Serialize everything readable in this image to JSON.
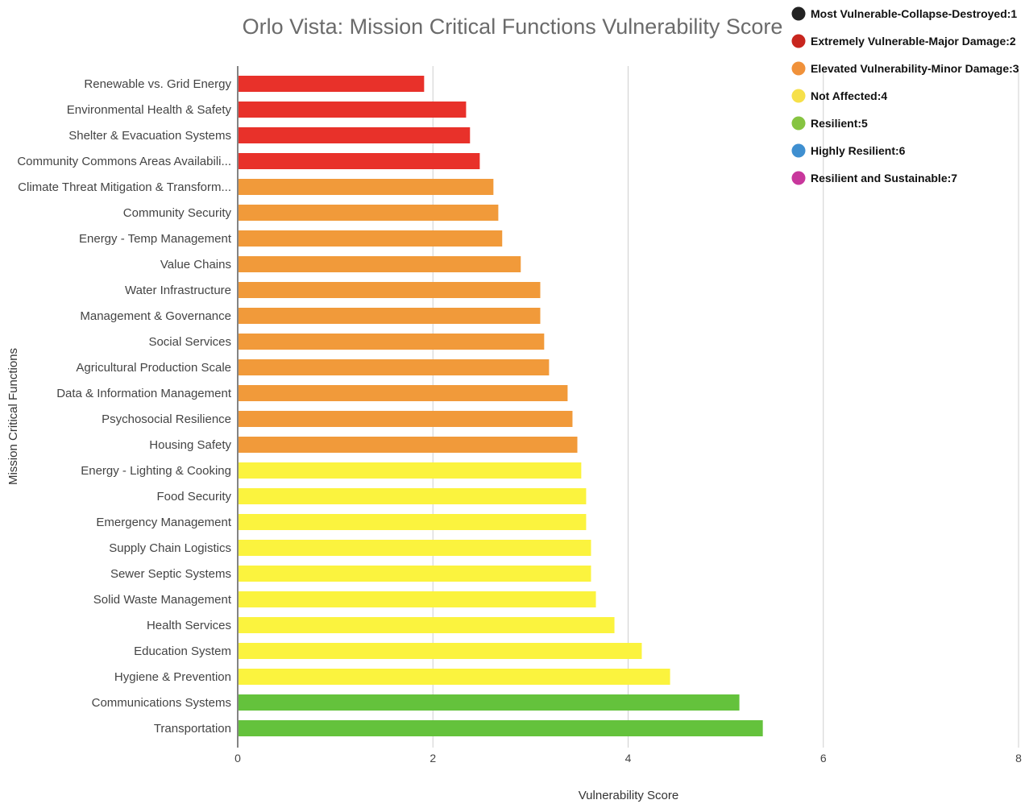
{
  "chart_data": {
    "type": "bar",
    "orientation": "horizontal",
    "title": "Orlo Vista: Mission Critical Functions Vulnerability Score",
    "xlabel": "Vulnerability Score",
    "ylabel": "Mission Critical Functions",
    "xlim": [
      0,
      8
    ],
    "xticks": [
      0,
      2,
      4,
      6,
      8
    ],
    "grid": true,
    "legend_position": "top-right",
    "categories": [
      "Renewable vs. Grid Energy",
      "Environmental Health & Safety",
      "Shelter & Evacuation Systems",
      "Community Commons Areas Availabili...",
      "Climate Threat Mitigation & Transform...",
      "Community Security",
      "Energy - Temp Management",
      "Value Chains",
      "Water Infrastructure",
      "Management & Governance",
      "Social Services",
      "Agricultural Production Scale",
      "Data & Information Management",
      "Psychosocial Resilience",
      "Housing Safety",
      "Energy - Lighting & Cooking",
      "Food Security",
      "Emergency Management",
      "Supply Chain Logistics",
      "Sewer Septic Systems",
      "Solid Waste Management",
      "Health Services",
      "Education System",
      "Hygiene & Prevention",
      "Communications Systems",
      "Transportation"
    ],
    "values": [
      1.91,
      2.34,
      2.38,
      2.48,
      2.62,
      2.67,
      2.71,
      2.9,
      3.1,
      3.1,
      3.14,
      3.19,
      3.38,
      3.43,
      3.48,
      3.52,
      3.57,
      3.57,
      3.62,
      3.62,
      3.67,
      3.86,
      4.14,
      4.43,
      5.14,
      5.38
    ],
    "bar_colors": [
      "#e8312a",
      "#e8312a",
      "#e8312a",
      "#e8312a",
      "#f19a3a",
      "#f19a3a",
      "#f19a3a",
      "#f19a3a",
      "#f19a3a",
      "#f19a3a",
      "#f19a3a",
      "#f19a3a",
      "#f19a3a",
      "#f19a3a",
      "#f19a3a",
      "#fbf33e",
      "#fbf33e",
      "#fbf33e",
      "#fbf33e",
      "#fbf33e",
      "#fbf33e",
      "#fbf33e",
      "#fbf33e",
      "#fbf33e",
      "#64c23c",
      "#64c23c"
    ],
    "legend": [
      {
        "label": "Most Vulnerable-Collapse-Destroyed:1",
        "color": "#222222"
      },
      {
        "label": "Extremely Vulnerable-Major Damage:2",
        "color": "#c8261e"
      },
      {
        "label": "Elevated Vulnerability-Minor Damage:3",
        "color": "#f0913a"
      },
      {
        "label": "Not Affected:4",
        "color": "#f6e04a"
      },
      {
        "label": "Resilient:5",
        "color": "#86c441"
      },
      {
        "label": "Highly Resilient:6",
        "color": "#3f8fd0"
      },
      {
        "label": "Resilient and Sustainable:7",
        "color": "#c8379c"
      }
    ]
  }
}
